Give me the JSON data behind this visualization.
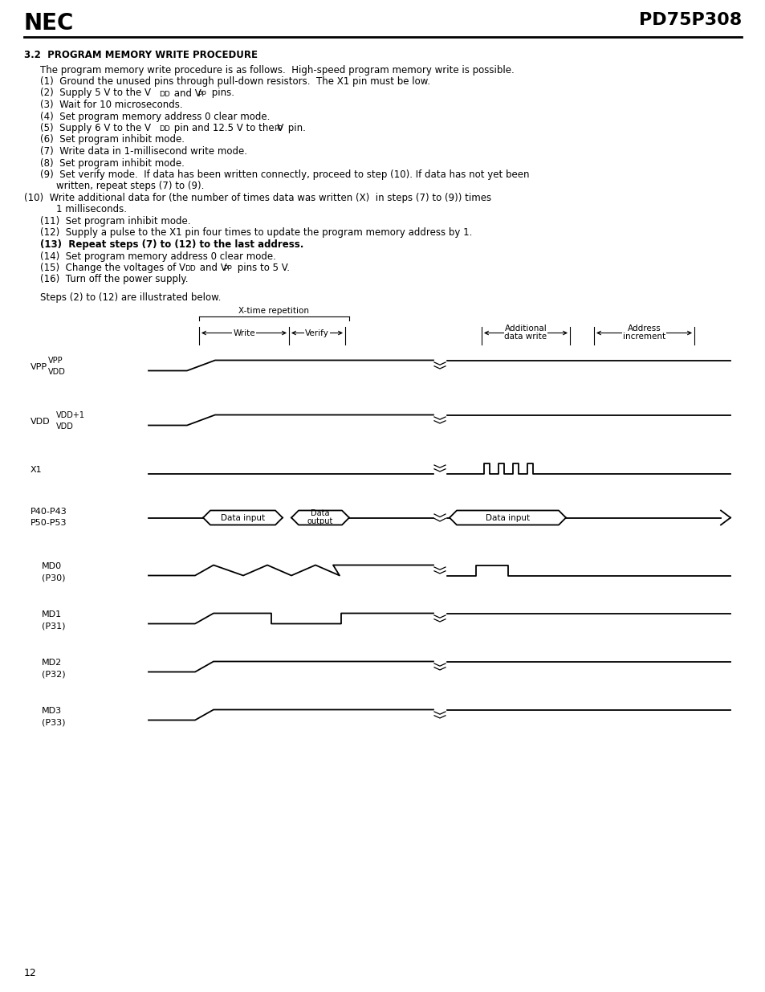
{
  "bg_color": "#ffffff",
  "header_left": "NEC",
  "header_right": "PD75P308",
  "page_num": "12",
  "section_title": "3.2  PROGRAM MEMORY WRITE PROCEDURE"
}
